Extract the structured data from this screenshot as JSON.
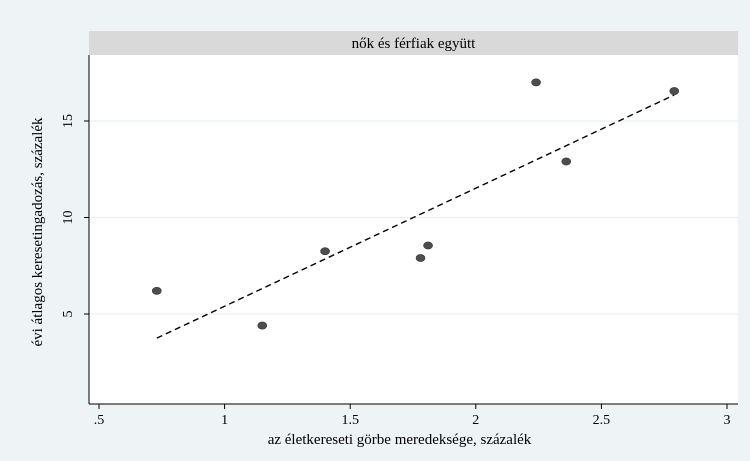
{
  "chart_data": {
    "type": "scatter",
    "title": "nők és férfiak együtt",
    "xlabel": "az életkereseti görbe meredeksége, százalék",
    "ylabel": "évi átlagos keresetingadozás, százalék",
    "xlim": [
      0.5,
      3.0
    ],
    "ylim": [
      0.5,
      18.5
    ],
    "x_ticks": [
      ".5",
      "1",
      "1.5",
      "2",
      "2.5",
      "3"
    ],
    "x_tick_values": [
      0.5,
      1,
      1.5,
      2,
      2.5,
      3
    ],
    "y_ticks": [
      "5",
      "10",
      "15"
    ],
    "y_tick_values": [
      5,
      10,
      15
    ],
    "grid": true,
    "points": [
      {
        "x": 0.73,
        "y": 6.2
      },
      {
        "x": 1.15,
        "y": 4.4
      },
      {
        "x": 1.4,
        "y": 8.25
      },
      {
        "x": 1.78,
        "y": 7.9
      },
      {
        "x": 1.81,
        "y": 8.55
      },
      {
        "x": 2.24,
        "y": 17.0
      },
      {
        "x": 2.36,
        "y": 12.9
      },
      {
        "x": 2.79,
        "y": 16.55
      }
    ],
    "fit_line": {
      "x": [
        0.73,
        2.79
      ],
      "y": [
        3.75,
        16.35
      ]
    },
    "colors": {
      "background": "#eef3f6",
      "plot_background": "#ffffff",
      "title_strip": "#d9d9d9",
      "marker": "#4d4d4d",
      "gridline": "#e6ecef",
      "fit_line": "#000000"
    }
  }
}
